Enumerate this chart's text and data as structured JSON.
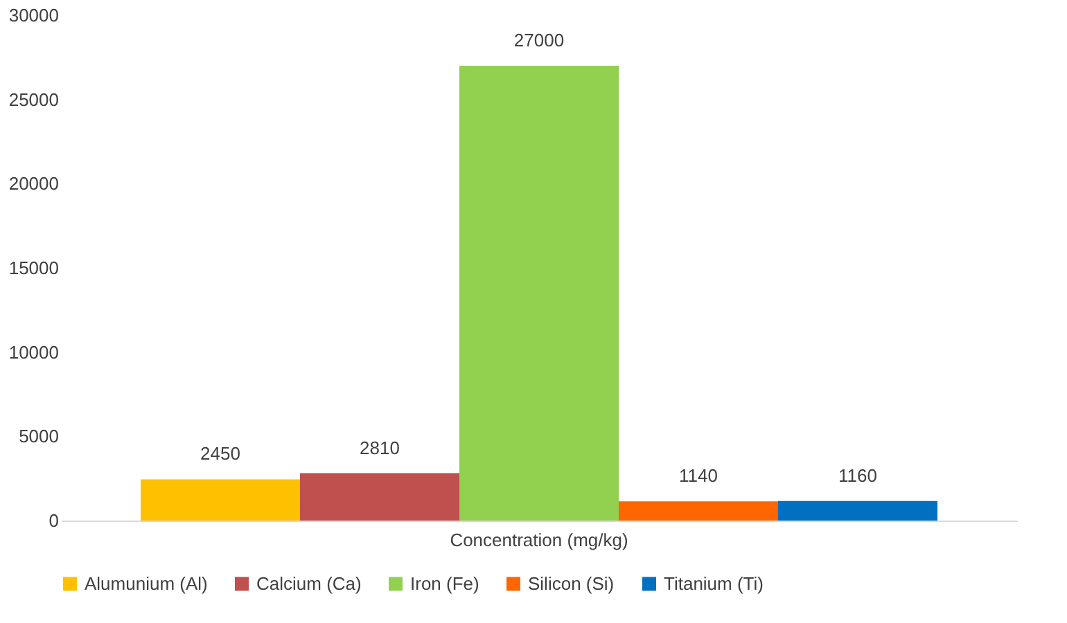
{
  "chart_data": {
    "type": "bar",
    "categories": [
      "Concentration (mg/kg)"
    ],
    "series": [
      {
        "name": "Alumunium (Al)",
        "color": "#ffc000",
        "values": [
          2450
        ]
      },
      {
        "name": "Calcium (Ca)",
        "color": "#c0504d",
        "values": [
          2810
        ]
      },
      {
        "name": "Iron (Fe)",
        "color": "#92d050",
        "values": [
          27000
        ]
      },
      {
        "name": "Silicon (Si)",
        "color": "#ff6600",
        "values": [
          1140
        ]
      },
      {
        "name": "Titanium (Ti)",
        "color": "#0070c0",
        "values": [
          1160
        ]
      }
    ],
    "ylim": [
      0,
      30000
    ],
    "yticks": [
      0,
      5000,
      10000,
      15000,
      20000,
      25000,
      30000
    ],
    "data_labels": true,
    "legend": "bottom",
    "grid": false
  }
}
